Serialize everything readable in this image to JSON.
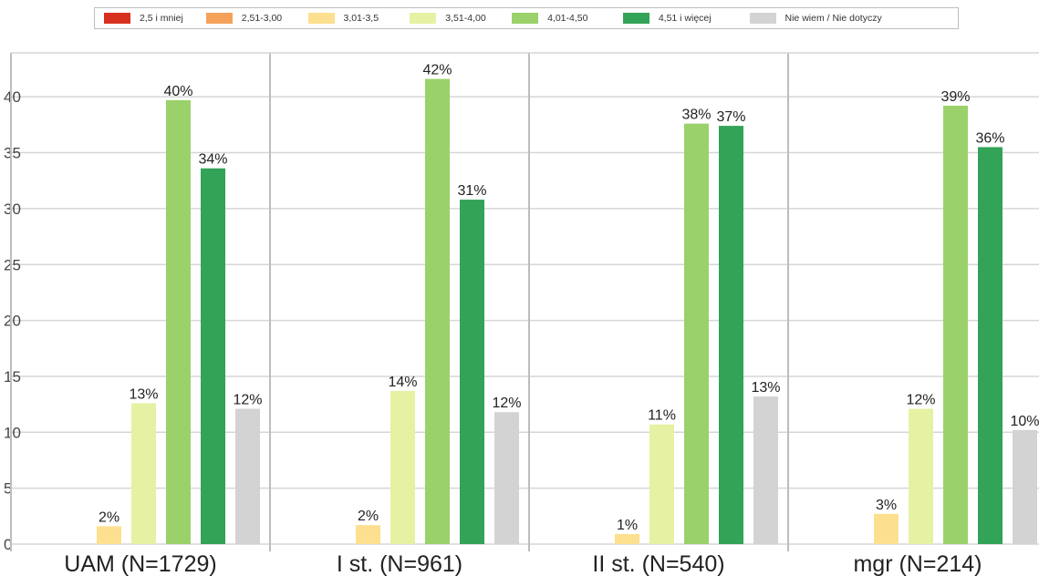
{
  "chart_data": {
    "type": "bar",
    "categories": [
      "UAM (N=1729)",
      "I st. (N=961)",
      "II st. (N=540)",
      "mgr (N=214)"
    ],
    "series": [
      {
        "name": "2,5 i mniej",
        "color": "#d7301f",
        "values": [
          0,
          0,
          0,
          0
        ],
        "labels": [
          "",
          "",
          "",
          ""
        ]
      },
      {
        "name": "2,51-3,00",
        "color": "#f4a259",
        "values": [
          0,
          0,
          0,
          0
        ],
        "labels": [
          "",
          "",
          "",
          ""
        ]
      },
      {
        "name": "3,01-3,5",
        "color": "#fde08f",
        "values": [
          1.6,
          1.7,
          0.9,
          2.7
        ],
        "labels": [
          "2%",
          "2%",
          "1%",
          "3%"
        ]
      },
      {
        "name": "3,51-4,00",
        "color": "#e6f1a3",
        "values": [
          12.6,
          13.7,
          10.7,
          12.1
        ],
        "labels": [
          "13%",
          "14%",
          "11%",
          "12%"
        ]
      },
      {
        "name": "4,01-4,50",
        "color": "#9bd16a",
        "values": [
          39.7,
          41.6,
          37.6,
          39.2
        ],
        "labels": [
          "40%",
          "42%",
          "38%",
          "39%"
        ]
      },
      {
        "name": "4,51 i więcej",
        "color": "#32a357",
        "values": [
          33.6,
          30.8,
          37.4,
          35.5
        ],
        "labels": [
          "34%",
          "31%",
          "37%",
          "36%"
        ]
      },
      {
        "name": "Nie wiem / Nie dotyczy",
        "color": "#d3d3d3",
        "values": [
          12.1,
          11.8,
          13.2,
          10.2
        ],
        "labels": [
          "12%",
          "12%",
          "13%",
          "10%"
        ]
      }
    ],
    "yticks": [
      "0",
      "5",
      "10",
      "15",
      "20",
      "25",
      "30",
      "35",
      "40"
    ],
    "ylim": [
      0,
      45
    ],
    "grid": true,
    "legend": "top"
  }
}
